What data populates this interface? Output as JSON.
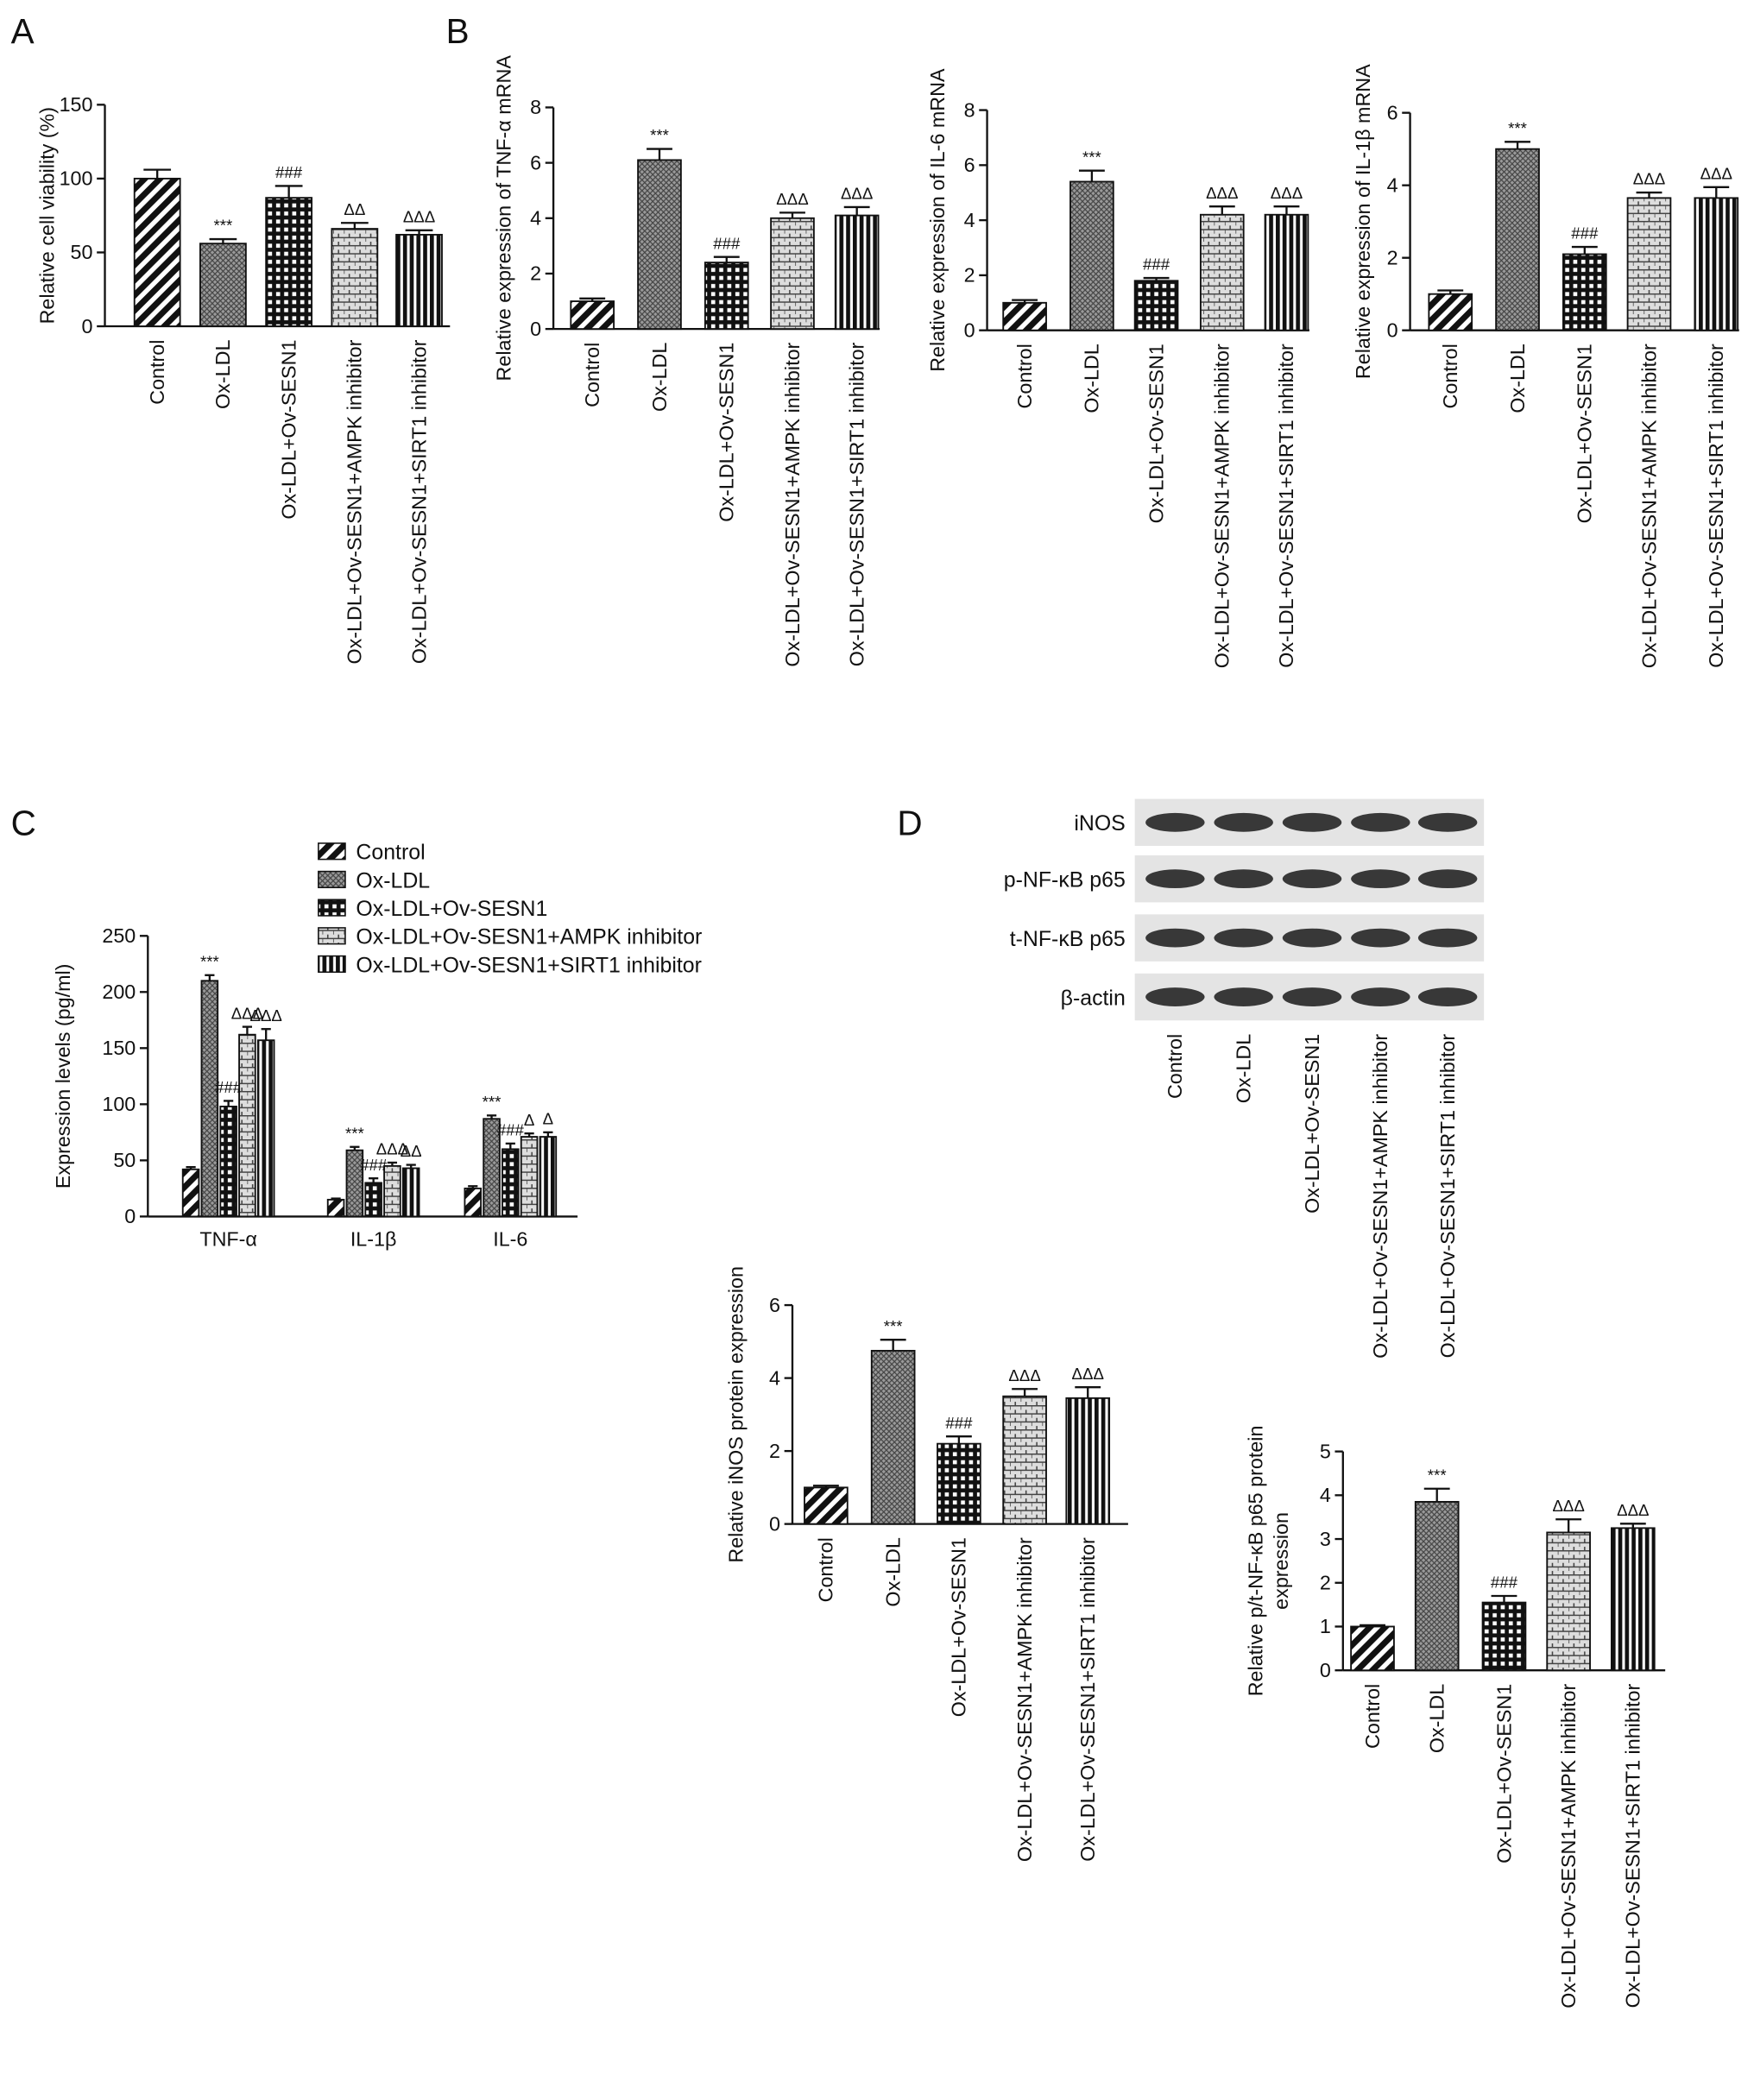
{
  "chart_data": [
    {
      "type": "bar",
      "panel": "A",
      "ylabel": "Relative cell viability (%)",
      "categories": [
        "Control",
        "Ox-LDL",
        "Ox-LDL+Ov-SESN1",
        "Ox-LDL+Ov-SESN1+AMPK inhibitor",
        "Ox-LDL+Ov-SESN1+SIRT1 inhibitor"
      ],
      "values": [
        100,
        56,
        87,
        66,
        62
      ],
      "errors": [
        6,
        3,
        8,
        4,
        3
      ],
      "annotations": [
        null,
        "***",
        "###",
        "ΔΔ",
        "ΔΔΔ"
      ],
      "ylim": [
        0,
        150
      ],
      "yticks": [
        0,
        50,
        100,
        150
      ]
    },
    {
      "type": "bar",
      "panel": "B",
      "ylabel": "Relative expression of TNF-α mRNA",
      "categories": [
        "Control",
        "Ox-LDL",
        "Ox-LDL+Ov-SESN1",
        "Ox-LDL+Ov-SESN1+AMPK inhibitor",
        "Ox-LDL+Ov-SESN1+SIRT1 inhibitor"
      ],
      "values": [
        1.0,
        6.1,
        2.4,
        4.0,
        4.1
      ],
      "errors": [
        0.1,
        0.4,
        0.2,
        0.2,
        0.3
      ],
      "annotations": [
        null,
        "***",
        "###",
        "ΔΔΔ",
        "ΔΔΔ"
      ],
      "ylim": [
        0,
        8
      ],
      "yticks": [
        0,
        2,
        4,
        6,
        8
      ]
    },
    {
      "type": "bar",
      "ylabel": "Relative expression of IL-6 mRNA",
      "categories": [
        "Control",
        "Ox-LDL",
        "Ox-LDL+Ov-SESN1",
        "Ox-LDL+Ov-SESN1+AMPK inhibitor",
        "Ox-LDL+Ov-SESN1+SIRT1 inhibitor"
      ],
      "values": [
        1.0,
        5.4,
        1.8,
        4.2,
        4.2
      ],
      "errors": [
        0.1,
        0.4,
        0.1,
        0.3,
        0.3
      ],
      "annotations": [
        null,
        "***",
        "###",
        "ΔΔΔ",
        "ΔΔΔ"
      ],
      "ylim": [
        0,
        8
      ],
      "yticks": [
        0,
        2,
        4,
        6,
        8
      ]
    },
    {
      "type": "bar",
      "ylabel": "Relative expression of IL-1β mRNA",
      "categories": [
        "Control",
        "Ox-LDL",
        "Ox-LDL+Ov-SESN1",
        "Ox-LDL+Ov-SESN1+AMPK inhibitor",
        "Ox-LDL+Ov-SESN1+SIRT1 inhibitor"
      ],
      "values": [
        1.0,
        5.0,
        2.1,
        3.65,
        3.65
      ],
      "errors": [
        0.1,
        0.2,
        0.2,
        0.15,
        0.3
      ],
      "annotations": [
        null,
        "***",
        "###",
        "ΔΔΔ",
        "ΔΔΔ"
      ],
      "ylim": [
        0,
        6
      ],
      "yticks": [
        0,
        2,
        4,
        6
      ]
    },
    {
      "type": "grouped_bar",
      "panel": "C",
      "ylabel": "Expression levels (pg/ml)",
      "categories": [
        "TNF-α",
        "IL-1β",
        "IL-6"
      ],
      "series": [
        {
          "name": "Control",
          "values": [
            42,
            15,
            25
          ],
          "errors": [
            2,
            1,
            2
          ],
          "annotations": [
            null,
            null,
            null
          ]
        },
        {
          "name": "Ox-LDL",
          "values": [
            210,
            59,
            87
          ],
          "errors": [
            5,
            3,
            3
          ],
          "annotations": [
            "***",
            "***",
            "***"
          ]
        },
        {
          "name": "Ox-LDL+Ov-SESN1",
          "values": [
            98,
            30,
            60
          ],
          "errors": [
            5,
            4,
            5
          ],
          "annotations": [
            "###",
            "###",
            "###"
          ]
        },
        {
          "name": "Ox-LDL+Ov-SESN1+AMPK inhibitor",
          "values": [
            162,
            45,
            71
          ],
          "errors": [
            7,
            3,
            3
          ],
          "annotations": [
            "ΔΔΔ",
            "ΔΔΔ",
            "Δ"
          ]
        },
        {
          "name": "Ox-LDL+Ov-SESN1+SIRT1 inhibitor",
          "values": [
            157,
            43,
            71
          ],
          "errors": [
            10,
            3,
            4
          ],
          "annotations": [
            "ΔΔΔ",
            "ΔΔ",
            "Δ"
          ]
        }
      ],
      "ylim": [
        0,
        250
      ],
      "yticks": [
        0,
        50,
        100,
        150,
        200,
        250
      ]
    },
    {
      "type": "blot",
      "panel": "D",
      "rows": [
        "iNOS",
        "p-NF-κB p65",
        "t-NF-κB p65",
        "β-actin"
      ],
      "categories": [
        "Control",
        "Ox-LDL",
        "Ox-LDL+Ov-SESN1",
        "Ox-LDL+Ov-SESN1+AMPK inhibitor",
        "Ox-LDL+Ov-SESN1+SIRT1 inhibitor"
      ]
    },
    {
      "type": "bar",
      "ylabel": "Relative iNOS protein expression",
      "categories": [
        "Control",
        "Ox-LDL",
        "Ox-LDL+Ov-SESN1",
        "Ox-LDL+Ov-SESN1+AMPK inhibitor",
        "Ox-LDL+Ov-SESN1+SIRT1 inhibitor"
      ],
      "values": [
        1.0,
        4.75,
        2.2,
        3.5,
        3.45
      ],
      "errors": [
        0.05,
        0.3,
        0.2,
        0.2,
        0.3
      ],
      "annotations": [
        null,
        "***",
        "###",
        "ΔΔΔ",
        "ΔΔΔ"
      ],
      "ylim": [
        0,
        6
      ],
      "yticks": [
        0,
        2,
        4,
        6
      ]
    },
    {
      "type": "bar",
      "ylabel": [
        "Relative p/t-NF-κB p65 protein",
        "expression"
      ],
      "categories": [
        "Control",
        "Ox-LDL",
        "Ox-LDL+Ov-SESN1",
        "Ox-LDL+Ov-SESN1+AMPK inhibitor",
        "Ox-LDL+Ov-SESN1+SIRT1 inhibitor"
      ],
      "values": [
        1.0,
        3.85,
        1.55,
        3.15,
        3.25
      ],
      "errors": [
        0.03,
        0.3,
        0.15,
        0.3,
        0.1
      ],
      "annotations": [
        null,
        "***",
        "###",
        "ΔΔΔ",
        "ΔΔΔ"
      ],
      "ylim": [
        0,
        5
      ],
      "yticks": [
        0,
        1,
        2,
        3,
        4,
        5
      ]
    }
  ]
}
